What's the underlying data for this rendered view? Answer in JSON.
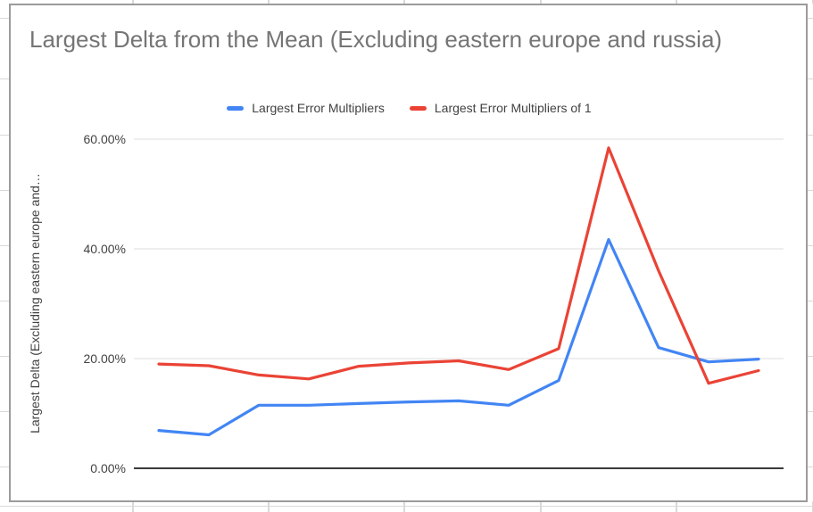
{
  "chart_data": {
    "type": "line",
    "title": "Largest Delta from the Mean (Excluding eastern europe and russia)",
    "ylabel": "Largest Delta (Excluding eastern europe and…",
    "xlabel": "",
    "x": [
      1,
      2,
      3,
      4,
      5,
      6,
      7,
      8,
      9,
      10,
      11,
      12,
      13
    ],
    "x_tick_labels_visible": false,
    "series": [
      {
        "name": "Largest Error Multipliers",
        "color": "#4285f4",
        "values": [
          6.9,
          6.1,
          11.5,
          11.5,
          11.8,
          12.1,
          12.3,
          11.5,
          16.0,
          41.7,
          22.0,
          19.4,
          19.9
        ]
      },
      {
        "name": "Largest Error Multipliers of 1",
        "color": "#ea4335",
        "values": [
          19.0,
          18.7,
          17.0,
          16.3,
          18.6,
          19.2,
          19.6,
          18.0,
          21.8,
          58.4,
          36.0,
          15.5,
          17.8
        ]
      }
    ],
    "y_ticks": [
      {
        "value": 0,
        "label": "0.00%"
      },
      {
        "value": 20,
        "label": "20.00%"
      },
      {
        "value": 40,
        "label": "40.00%"
      },
      {
        "value": 60,
        "label": "60.00%"
      }
    ],
    "ylim": [
      0,
      65
    ],
    "unit": "%",
    "grid": "horizontal",
    "legend_position": "top",
    "colors": {
      "title_text": "#757575",
      "axis_text": "#424242",
      "gridline": "#e3e3e3",
      "axis_line": "#1f1f1f",
      "card_border": "#9b9b9b"
    }
  }
}
